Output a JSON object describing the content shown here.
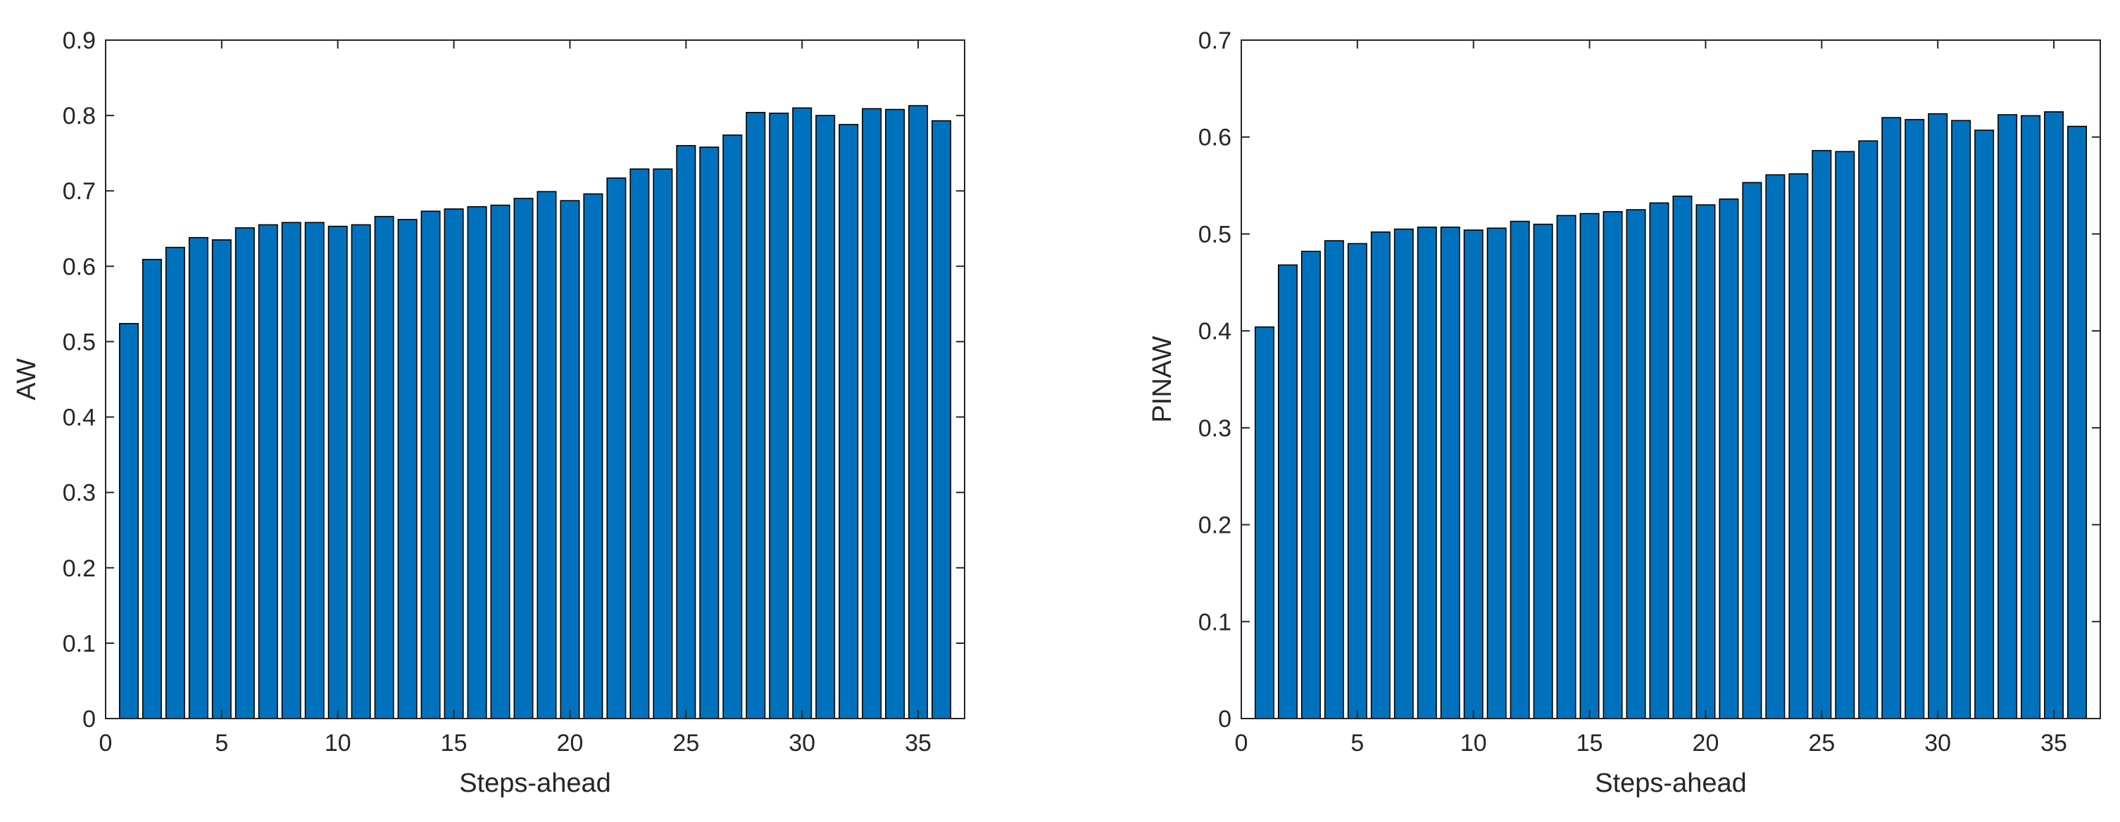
{
  "bar_color": "#0072BD",
  "edge_color": "#000000",
  "chart_data": [
    {
      "type": "bar",
      "title": "",
      "xlabel": "Steps-ahead",
      "ylabel": "AW",
      "xlim": [
        0,
        37
      ],
      "ylim": [
        0,
        0.9
      ],
      "xticks": [
        "0",
        "5",
        "10",
        "15",
        "20",
        "25",
        "30",
        "35"
      ],
      "yticks": [
        "0",
        "0.1",
        "0.2",
        "0.3",
        "0.4",
        "0.5",
        "0.6",
        "0.7",
        "0.8",
        "0.9"
      ],
      "categories": [
        1,
        2,
        3,
        4,
        5,
        6,
        7,
        8,
        9,
        10,
        11,
        12,
        13,
        14,
        15,
        16,
        17,
        18,
        19,
        20,
        21,
        22,
        23,
        24,
        25,
        26,
        27,
        28,
        29,
        30,
        31,
        32,
        33,
        34,
        35,
        36
      ],
      "values": [
        0.524,
        0.609,
        0.625,
        0.638,
        0.635,
        0.651,
        0.655,
        0.658,
        0.658,
        0.653,
        0.655,
        0.666,
        0.662,
        0.673,
        0.676,
        0.679,
        0.681,
        0.69,
        0.699,
        0.687,
        0.696,
        0.717,
        0.729,
        0.729,
        0.76,
        0.758,
        0.774,
        0.804,
        0.803,
        0.81,
        0.8,
        0.788,
        0.809,
        0.808,
        0.813,
        0.793
      ],
      "grid": false
    },
    {
      "type": "bar",
      "title": "",
      "xlabel": "Steps-ahead",
      "ylabel": "PINAW",
      "xlim": [
        0,
        37
      ],
      "ylim": [
        0,
        0.7
      ],
      "xticks": [
        "0",
        "5",
        "10",
        "15",
        "20",
        "25",
        "30",
        "35"
      ],
      "yticks": [
        "0",
        "0.1",
        "0.2",
        "0.3",
        "0.4",
        "0.5",
        "0.6",
        "0.7"
      ],
      "categories": [
        1,
        2,
        3,
        4,
        5,
        6,
        7,
        8,
        9,
        10,
        11,
        12,
        13,
        14,
        15,
        16,
        17,
        18,
        19,
        20,
        21,
        22,
        23,
        24,
        25,
        26,
        27,
        28,
        29,
        30,
        31,
        32,
        33,
        34,
        35,
        36
      ],
      "values": [
        0.404,
        0.468,
        0.482,
        0.493,
        0.49,
        0.502,
        0.505,
        0.507,
        0.507,
        0.504,
        0.506,
        0.513,
        0.51,
        0.519,
        0.521,
        0.523,
        0.525,
        0.532,
        0.539,
        0.53,
        0.536,
        0.553,
        0.561,
        0.562,
        0.586,
        0.585,
        0.596,
        0.62,
        0.618,
        0.624,
        0.617,
        0.607,
        0.623,
        0.622,
        0.626,
        0.611
      ],
      "grid": false
    }
  ]
}
